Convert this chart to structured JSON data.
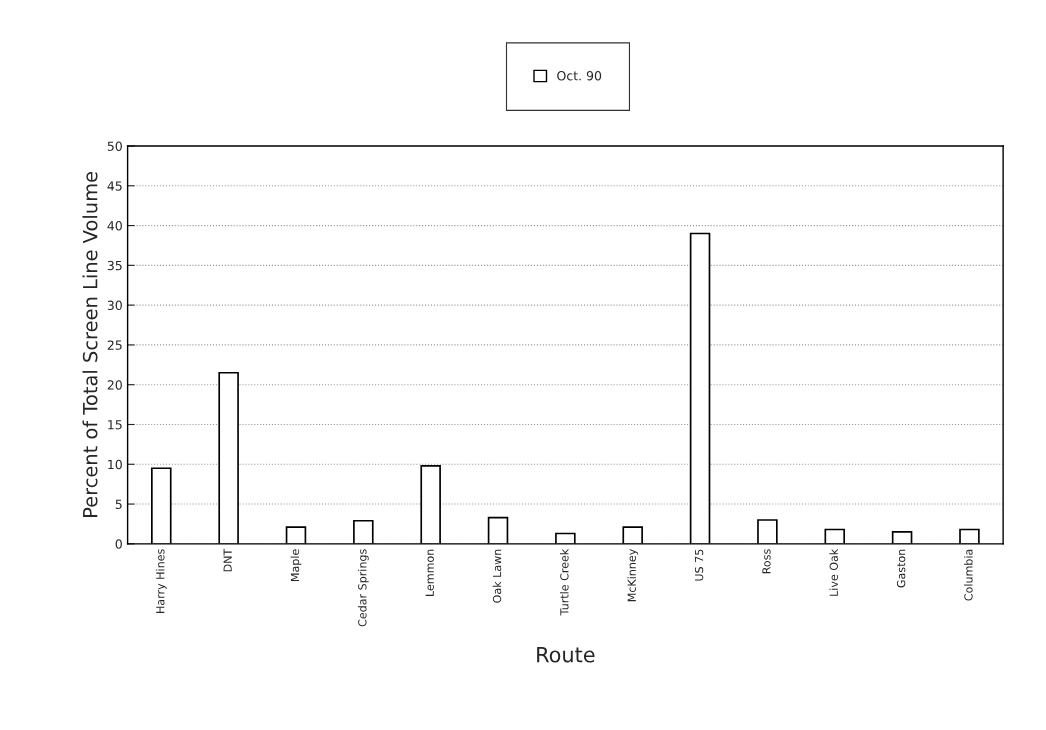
{
  "chart_data": {
    "type": "bar",
    "categories": [
      "Harry Hines",
      "DNT",
      "Maple",
      "Cedar Springs",
      "Lemmon",
      "Oak Lawn",
      "Turtle Creek",
      "McKinney",
      "US 75",
      "Ross",
      "Live Oak",
      "Gaston",
      "Columbia"
    ],
    "series": [
      {
        "name": "Oct. 90",
        "color": "#ffffff",
        "values": [
          9.5,
          21.5,
          2.1,
          2.9,
          9.8,
          3.3,
          1.3,
          2.1,
          39.0,
          3.0,
          1.8,
          1.5,
          1.8
        ]
      }
    ],
    "xlabel": "Route",
    "ylabel": "Percent of Total Screen Line Volume",
    "ylim": [
      0,
      50
    ],
    "yticks": [
      0,
      5,
      10,
      15,
      20,
      25,
      30,
      35,
      40,
      45,
      50
    ],
    "grid": "y",
    "legend": "top"
  }
}
